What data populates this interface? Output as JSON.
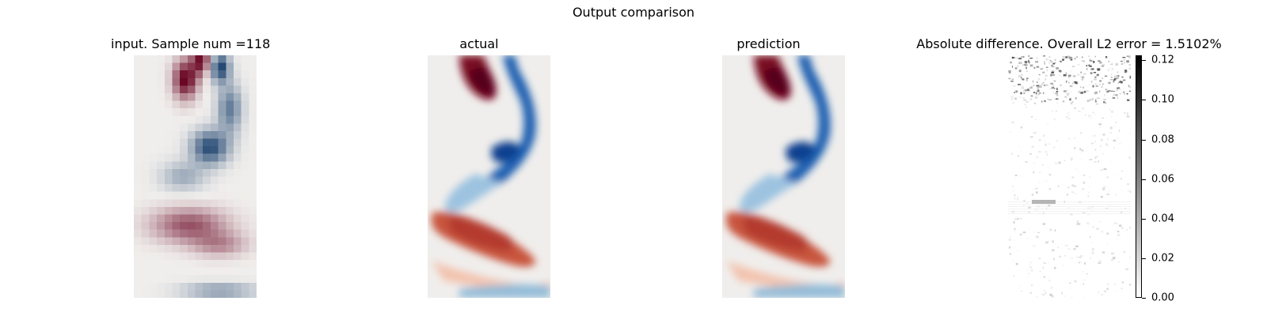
{
  "figure": {
    "suptitle": "Output comparison"
  },
  "panels": [
    {
      "id": "input",
      "title": "input. Sample num =118"
    },
    {
      "id": "actual",
      "title": "actual"
    },
    {
      "id": "prediction",
      "title": "prediction"
    },
    {
      "id": "diff",
      "title": "Absolute difference. Overall L2 error = 1.5102%"
    }
  ],
  "colors": {
    "positive": "#67001f",
    "negative": "#053061",
    "neutral": "#f0eeec",
    "diff_max": "#000000",
    "diff_min": "#ffffff"
  },
  "chart_data": {
    "type": "heatmap",
    "colorbar": {
      "ticks": [
        0.0,
        0.02,
        0.04,
        0.06,
        0.08,
        0.1,
        0.12
      ],
      "tick_labels": [
        "0.00",
        "0.02",
        "0.04",
        "0.06",
        "0.08",
        "0.10",
        "0.12"
      ],
      "range": [
        0,
        0.1225
      ]
    }
  }
}
